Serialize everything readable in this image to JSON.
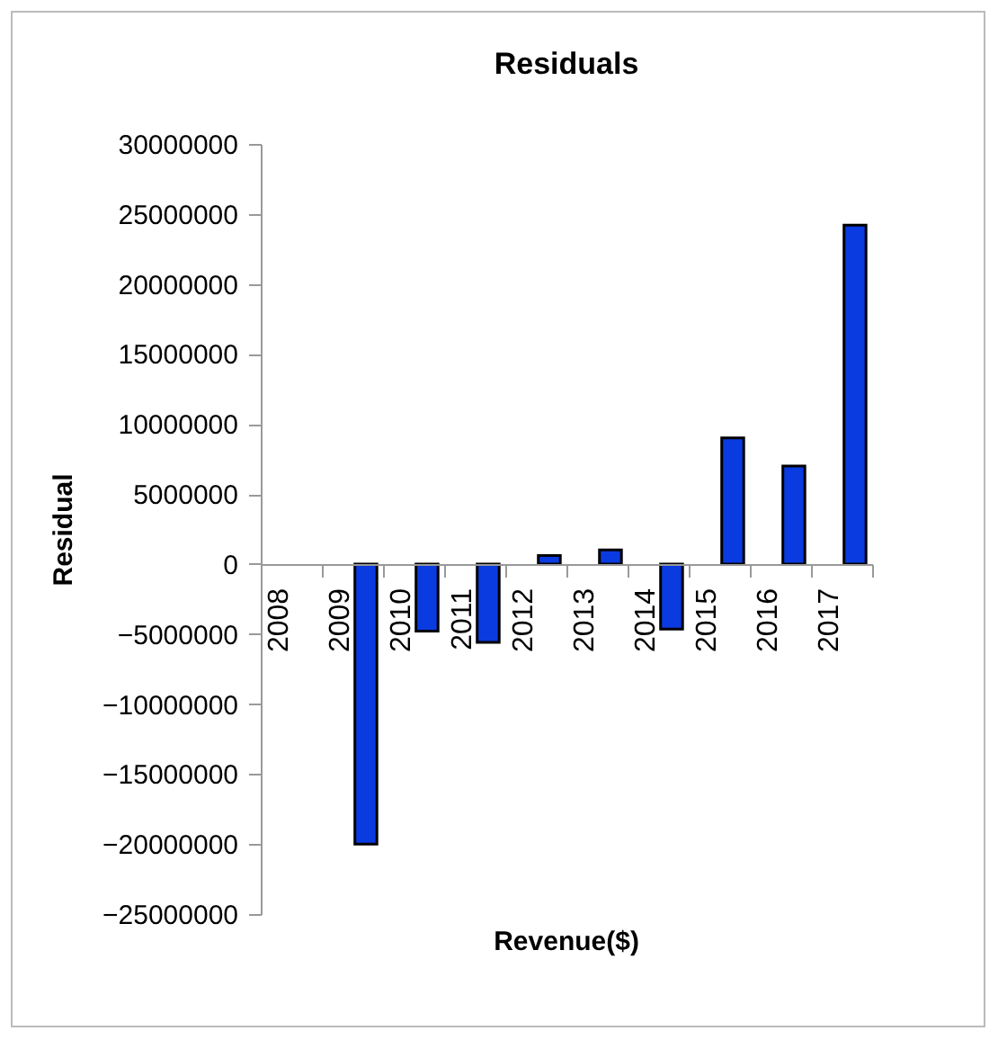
{
  "chart_data": {
    "type": "bar",
    "title": "Residuals",
    "xlabel": "Revenue($)",
    "ylabel": "Residual",
    "categories": [
      "2008",
      "2009",
      "2010",
      "2011",
      "2012",
      "2013",
      "2014",
      "2015",
      "2016",
      "2017"
    ],
    "series": [
      {
        "color": "#0a3be0",
        "values": [
          null,
          -20000000,
          -4800000,
          -5600000,
          600000,
          1000000,
          -4650000,
          9000000,
          7000000,
          24200000
        ]
      }
    ],
    "ylim": [
      -25000000,
      30000000
    ],
    "yticks": [
      -25000000,
      -20000000,
      -15000000,
      -10000000,
      -5000000,
      0,
      5000000,
      10000000,
      15000000,
      20000000,
      25000000,
      30000000
    ],
    "grid": false,
    "legend": false
  }
}
